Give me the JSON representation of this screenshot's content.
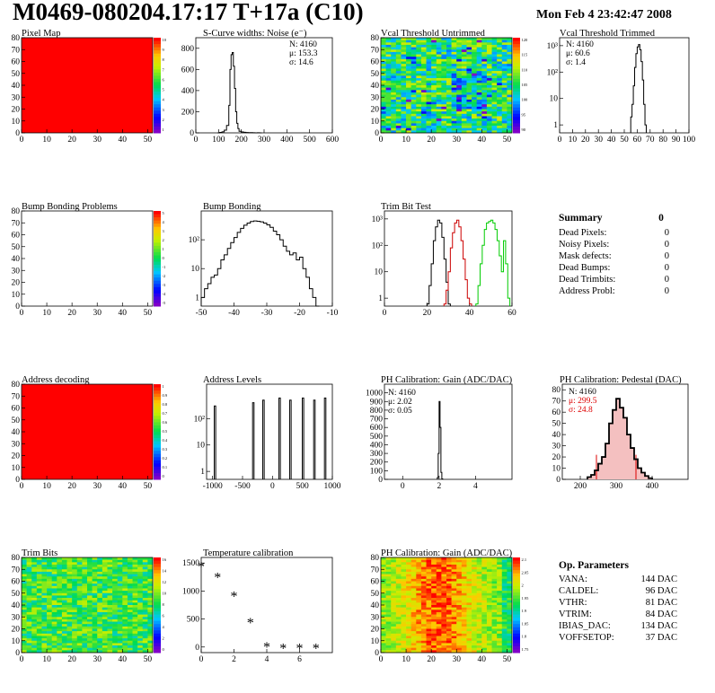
{
  "header": {
    "title": "M0469-080204.17:17 T+17a (C10)",
    "date": "Mon Feb  4 23:42:47 2008"
  },
  "colors": {
    "red_map": "#ff0000",
    "trim_black": "#000000",
    "trim_red": "#cc0000",
    "trim_green": "#00cc00",
    "stat_red": "#dd0000"
  },
  "chart_data": [
    {
      "id": "pixel-map",
      "type": "heatmap",
      "title": "Pixel Map",
      "xlim": [
        0,
        52
      ],
      "ylim": [
        0,
        80
      ],
      "xticks": [
        0,
        10,
        20,
        30,
        40,
        50
      ],
      "yticks": [
        0,
        10,
        20,
        30,
        40,
        50,
        60,
        70,
        80
      ],
      "fill": "uniform-red",
      "palette": {
        "ticks": [
          "10",
          "9",
          "8",
          "7",
          "6",
          "5",
          "4",
          "3",
          "2",
          "1"
        ]
      }
    },
    {
      "id": "scurve",
      "type": "histogram",
      "title": "S-Curve widths: Noise (e⁻)",
      "xlim": [
        0,
        600
      ],
      "ylim": [
        0,
        900
      ],
      "xticks": [
        0,
        100,
        200,
        300,
        400,
        500,
        600
      ],
      "yticks": [
        0,
        200,
        400,
        600,
        800
      ],
      "stats": [
        {
          "label": "N: 4160"
        },
        {
          "label": "μ: 153.3"
        },
        {
          "label": "σ: 14.6"
        }
      ],
      "x": [
        95,
        105,
        115,
        125,
        135,
        145,
        150,
        155,
        160,
        165,
        170,
        175,
        180,
        185,
        190,
        200,
        210,
        220,
        230,
        240,
        250,
        260,
        270,
        280
      ],
      "values": [
        0,
        4,
        10,
        25,
        70,
        260,
        600,
        740,
        760,
        630,
        420,
        200,
        90,
        40,
        15,
        8,
        5,
        3,
        2,
        2,
        1,
        0,
        1,
        0
      ]
    },
    {
      "id": "vcal-untrimmed",
      "type": "heatmap",
      "title": "Vcal Threshold Untrimmed",
      "xlim": [
        0,
        52
      ],
      "ylim": [
        0,
        80
      ],
      "xticks": [
        0,
        10,
        20,
        30,
        40,
        50
      ],
      "yticks": [
        0,
        10,
        20,
        30,
        40,
        50,
        60,
        70,
        80
      ],
      "fill": "noise-green-yellow",
      "palette": {
        "ticks": [
          "120",
          "115",
          "110",
          "105",
          "100",
          "95",
          "90"
        ]
      }
    },
    {
      "id": "vcal-trimmed",
      "type": "histogram",
      "title": "Vcal Threshold Trimmed",
      "log": true,
      "xlim": [
        0,
        100
      ],
      "ylim": [
        0.5,
        2000
      ],
      "xticks": [
        0,
        10,
        20,
        30,
        40,
        50,
        60,
        70,
        80,
        90,
        100
      ],
      "yticks": [
        1,
        10,
        100,
        1000
      ],
      "stats": [
        {
          "label": "N: 4160"
        },
        {
          "label": "μ: 60.6"
        },
        {
          "label": "σ:  1.4"
        }
      ],
      "x": [
        55,
        56,
        57,
        58,
        59,
        60,
        61,
        62,
        63,
        64,
        65,
        66
      ],
      "values": [
        2,
        6,
        30,
        150,
        500,
        900,
        1100,
        700,
        250,
        50,
        6,
        1
      ]
    },
    {
      "id": "bump-problems",
      "type": "heatmap",
      "title": "Bump Bonding Problems",
      "xlim": [
        0,
        52
      ],
      "ylim": [
        0,
        80
      ],
      "xticks": [
        0,
        10,
        20,
        30,
        40,
        50
      ],
      "yticks": [
        0,
        10,
        20,
        30,
        40,
        50,
        60,
        70,
        80
      ],
      "fill": "empty",
      "palette": {
        "ticks": [
          "5",
          "4",
          "3",
          "2",
          "1",
          "0",
          "-1",
          "-2",
          "-3",
          "-4",
          "-5"
        ]
      }
    },
    {
      "id": "bump-bonding",
      "type": "histogram",
      "title": "Bump Bonding",
      "log": true,
      "xlim": [
        -50,
        -10
      ],
      "ylim": [
        0.5,
        1000
      ],
      "xticks": [
        -50,
        -40,
        -30,
        -20,
        -10
      ],
      "yticks": [
        1,
        10,
        100
      ],
      "x": [
        -50,
        -49,
        -48,
        -47,
        -46,
        -45,
        -44,
        -43,
        -42,
        -41,
        -40,
        -39,
        -38,
        -37,
        -36,
        -35,
        -34,
        -33,
        -32,
        -31,
        -30,
        -29,
        -28,
        -27,
        -26,
        -25,
        -24,
        -23,
        -22,
        -21,
        -20,
        -19,
        -18,
        -17,
        -16,
        -15
      ],
      "values": [
        1,
        2,
        3,
        5,
        6,
        10,
        20,
        30,
        50,
        80,
        120,
        180,
        250,
        320,
        380,
        430,
        450,
        440,
        420,
        380,
        330,
        270,
        200,
        150,
        100,
        60,
        40,
        30,
        35,
        20,
        25,
        10,
        5,
        2,
        1,
        0
      ]
    },
    {
      "id": "trim-bit-test",
      "type": "histogram",
      "title": "Trim Bit Test",
      "log": true,
      "xlim": [
        0,
        60
      ],
      "ylim": [
        0.5,
        2000
      ],
      "xticks": [
        0,
        20,
        40,
        60
      ],
      "yticks": [
        1,
        10,
        100,
        1000
      ],
      "series": [
        {
          "color": "black",
          "x": [
            20,
            21,
            22,
            23,
            24,
            25,
            26,
            27,
            28,
            29,
            30
          ],
          "values": [
            0.6,
            3,
            20,
            150,
            500,
            900,
            700,
            200,
            30,
            4,
            0.6
          ]
        },
        {
          "color": "red",
          "x": [
            28,
            29,
            30,
            31,
            32,
            33,
            34,
            35,
            36,
            37,
            38,
            39,
            40
          ],
          "values": [
            0.6,
            2,
            10,
            80,
            300,
            700,
            900,
            500,
            150,
            30,
            5,
            1,
            0.6
          ]
        },
        {
          "color": "green",
          "x": [
            43,
            44,
            45,
            46,
            47,
            48,
            49,
            50,
            51,
            52,
            53,
            54,
            55,
            56,
            57,
            58
          ],
          "values": [
            0.6,
            3,
            20,
            100,
            400,
            700,
            800,
            900,
            700,
            400,
            150,
            40,
            10,
            150,
            20,
            1
          ]
        }
      ]
    },
    {
      "id": "address-decoding",
      "type": "heatmap",
      "title": "Address decoding",
      "xlim": [
        0,
        52
      ],
      "ylim": [
        0,
        80
      ],
      "xticks": [
        0,
        10,
        20,
        30,
        40,
        50
      ],
      "yticks": [
        0,
        10,
        20,
        30,
        40,
        50,
        60,
        70,
        80
      ],
      "fill": "uniform-red",
      "palette": {
        "ticks": [
          "1",
          "0.9",
          "0.8",
          "0.7",
          "0.6",
          "0.5",
          "0.4",
          "0.3",
          "0.2",
          "0.1",
          "0"
        ]
      }
    },
    {
      "id": "address-levels",
      "type": "histogram",
      "title": "Address Levels",
      "log": true,
      "xlim": [
        -1100,
        1000
      ],
      "ylim": [
        0.5,
        2000
      ],
      "xticks": [
        -1000,
        -500,
        0,
        500,
        1000
      ],
      "yticks": [
        1,
        10,
        100
      ],
      "peaks": [
        {
          "center": -960,
          "value": 300
        },
        {
          "center": -320,
          "value": 400
        },
        {
          "center": -150,
          "value": 500
        },
        {
          "center": 120,
          "value": 600
        },
        {
          "center": 300,
          "value": 500
        },
        {
          "center": 510,
          "value": 600
        },
        {
          "center": 700,
          "value": 500
        },
        {
          "center": 880,
          "value": 600
        }
      ]
    },
    {
      "id": "ph-gain",
      "type": "histogram",
      "title": "PH Calibration: Gain (ADC/DAC)",
      "xlim": [
        -1,
        6
      ],
      "ylim": [
        0,
        1100
      ],
      "xticks": [
        0,
        2,
        4
      ],
      "yticks": [
        0,
        100,
        200,
        300,
        400,
        500,
        600,
        700,
        800,
        900,
        1000
      ],
      "stats": [
        {
          "label": "N: 4160"
        },
        {
          "label": "μ: 2.02"
        },
        {
          "label": "σ: 0.05"
        }
      ],
      "x": [
        1.9,
        1.95,
        2.0,
        2.05,
        2.1,
        2.15
      ],
      "values": [
        20,
        300,
        900,
        600,
        80,
        5
      ]
    },
    {
      "id": "ph-pedestal",
      "type": "histogram",
      "title": "PH Calibration: Pedestal (DAC)",
      "xlim": [
        150,
        500
      ],
      "ylim": [
        0,
        85
      ],
      "xticks": [
        200,
        300,
        400
      ],
      "yticks": [
        0,
        10,
        20,
        30,
        40,
        50,
        60,
        70,
        80
      ],
      "stats": [
        {
          "label": "N: 4160",
          "color": "black"
        },
        {
          "label": "μ: 299.5",
          "color": "red"
        },
        {
          "label": "σ: 24.8",
          "color": "red"
        }
      ],
      "x": [
        220,
        230,
        240,
        250,
        260,
        270,
        280,
        290,
        300,
        310,
        320,
        330,
        340,
        350,
        360,
        370,
        380,
        390
      ],
      "values": [
        2,
        4,
        8,
        14,
        20,
        32,
        50,
        62,
        72,
        64,
        55,
        40,
        28,
        18,
        10,
        6,
        3,
        1
      ],
      "markers": [
        245,
        355
      ]
    },
    {
      "id": "trim-bits",
      "type": "heatmap",
      "title": "Trim Bits",
      "xlim": [
        0,
        52
      ],
      "ylim": [
        0,
        80
      ],
      "xticks": [
        0,
        10,
        20,
        30,
        40,
        50
      ],
      "yticks": [
        0,
        10,
        20,
        30,
        40,
        50,
        60,
        70,
        80
      ],
      "fill": "noise-green",
      "palette": {
        "ticks": [
          "16",
          "14",
          "12",
          "10",
          "8",
          "6",
          "4",
          "2",
          "0"
        ]
      }
    },
    {
      "id": "temperature",
      "type": "scatter",
      "title": "Temperature calibration",
      "xlim": [
        0,
        8
      ],
      "ylim": [
        -100,
        1600
      ],
      "xticks": [
        0,
        2,
        4,
        6
      ],
      "yticks": [
        0,
        500,
        1000,
        1500
      ],
      "x": [
        0,
        1,
        2,
        3,
        4,
        5,
        6,
        7
      ],
      "y": [
        1430,
        1240,
        900,
        430,
        0,
        -30,
        -30,
        -30
      ]
    },
    {
      "id": "ph-gain-map",
      "type": "heatmap",
      "title": "PH Calibration: Gain (ADC/DAC)",
      "xlim": [
        0,
        52
      ],
      "ylim": [
        0,
        80
      ],
      "xticks": [
        0,
        10,
        20,
        30,
        40,
        50
      ],
      "yticks": [
        0,
        10,
        20,
        30,
        40,
        50,
        60,
        70,
        80
      ],
      "fill": "noise-red-yellow",
      "palette": {
        "ticks": [
          "2.1",
          "2.05",
          "2",
          "1.95",
          "1.9",
          "1.85",
          "1.8",
          "1.75"
        ]
      }
    }
  ],
  "summary": {
    "title": "Summary",
    "total": "0",
    "rows": [
      {
        "label": "Dead Pixels:",
        "value": "0"
      },
      {
        "label": "Noisy Pixels:",
        "value": "0"
      },
      {
        "label": "Mask defects:",
        "value": "0"
      },
      {
        "label": "Dead Bumps:",
        "value": "0"
      },
      {
        "label": "Dead Trimbits:",
        "value": "0"
      },
      {
        "label": "Address Probl:",
        "value": "0"
      }
    ]
  },
  "params": {
    "title": "Op. Parameters",
    "rows": [
      {
        "label": "VANA:",
        "value": "144 DAC"
      },
      {
        "label": "CALDEL:",
        "value": "96 DAC"
      },
      {
        "label": "VTHR:",
        "value": "81 DAC"
      },
      {
        "label": "VTRIM:",
        "value": "84 DAC"
      },
      {
        "label": "IBIAS_DAC:",
        "value": "134 DAC"
      },
      {
        "label": "VOFFSETOP:",
        "value": "37 DAC"
      }
    ]
  }
}
